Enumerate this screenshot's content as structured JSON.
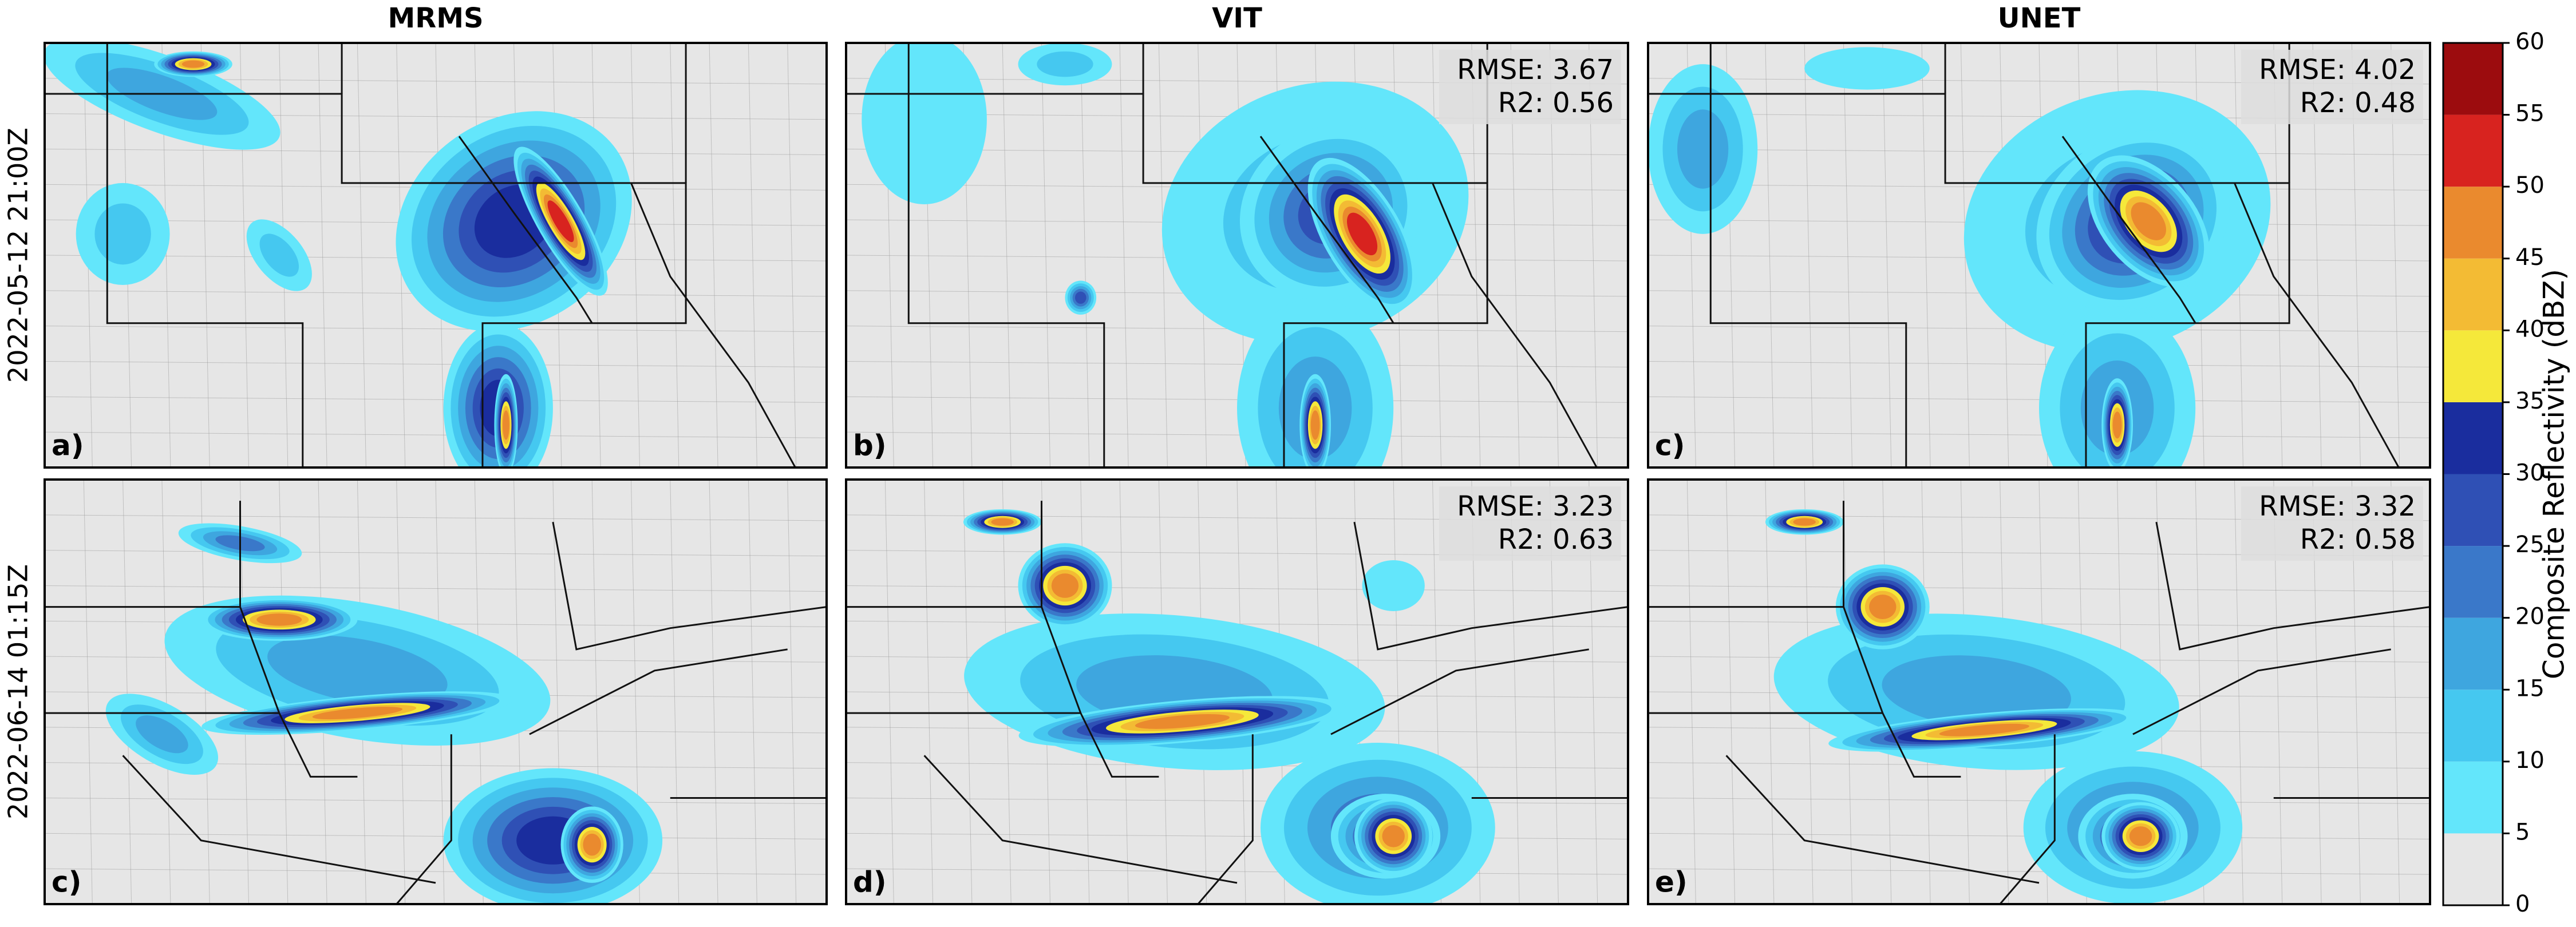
{
  "columns": [
    "MRMS",
    "VIT",
    "UNET"
  ],
  "rows": [
    "2022-05-12 21:00Z",
    "2022-06-14 01:15Z"
  ],
  "panels": [
    {
      "label": "a)"
    },
    {
      "label": "b)",
      "rmse": "RMSE: 3.67",
      "r2": "R2: 0.56"
    },
    {
      "label": "c)",
      "rmse": "RMSE: 4.02",
      "r2": "R2: 0.48"
    },
    {
      "label": "c)"
    },
    {
      "label": "d)",
      "rmse": "RMSE: 3.23",
      "r2": "R2: 0.63"
    },
    {
      "label": "e)",
      "rmse": "RMSE: 3.32",
      "r2": "R2: 0.58"
    }
  ],
  "colorbar": {
    "label": "Composite Reflectivity (dBZ)",
    "lim": [
      0,
      60
    ],
    "ticks": [
      0,
      5,
      10,
      15,
      20,
      25,
      30,
      35,
      40,
      45,
      50,
      55,
      60
    ],
    "colors": [
      "#e6e6e6",
      "#63e6fb",
      "#45c8f0",
      "#3ea6df",
      "#3a78c9",
      "#2f50b5",
      "#1a2d9e",
      "#f5e83a",
      "#f3bb34",
      "#ea8a2e",
      "#d8231f",
      "#9c0c0e"
    ]
  }
}
